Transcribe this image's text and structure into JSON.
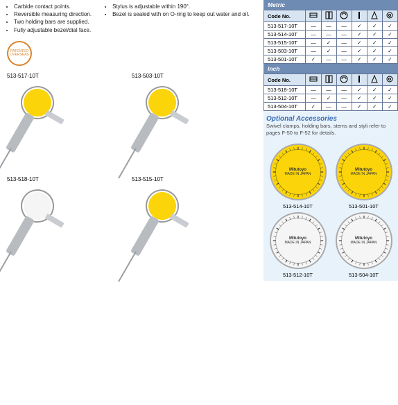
{
  "features_col1": [
    "Carbide contact points.",
    "Reversible measuring direction.",
    "Two holding bars are supplied.",
    "Fully adjustable bezel/dial face."
  ],
  "features_col2": [
    "Stylus is adjustable within 190°.",
    "Bezel is sealed with on O-ring to keep out water and oil."
  ],
  "badge": "PATENTED OVERSEAS",
  "products": [
    {
      "label": "513-517-10T",
      "dial": "yellow"
    },
    {
      "label": "513-503-10T",
      "dial": "yellow"
    },
    {
      "label": "513-518-10T",
      "dial": "white"
    },
    {
      "label": "513-515-10T",
      "dial": "yellow"
    }
  ],
  "metric_header": "Metric",
  "inch_header": "Inch",
  "code_header": "Code No.",
  "icon_names": [
    "orient-h",
    "orient-v",
    "orient-u",
    "rod",
    "cone",
    "ring"
  ],
  "metric_rows": [
    {
      "code": "513-517-10T",
      "v": [
        "—",
        "—",
        "—",
        "✓",
        "✓",
        "✓"
      ]
    },
    {
      "code": "513-514-10T",
      "v": [
        "—",
        "—",
        "—",
        "✓",
        "✓",
        "✓"
      ]
    },
    {
      "code": "513-515-10T",
      "v": [
        "—",
        "✓",
        "—",
        "✓",
        "✓",
        "✓"
      ]
    },
    {
      "code": "513-503-10T",
      "v": [
        "—",
        "✓",
        "—",
        "✓",
        "✓",
        "✓"
      ]
    },
    {
      "code": "513-501-10T",
      "v": [
        "✓",
        "—",
        "—",
        "✓",
        "✓",
        "✓"
      ]
    }
  ],
  "inch_rows": [
    {
      "code": "513-518-10T",
      "v": [
        "—",
        "—",
        "—",
        "✓",
        "✓",
        "✓"
      ]
    },
    {
      "code": "513-512-10T",
      "v": [
        "—",
        "✓",
        "—",
        "✓",
        "✓",
        "✓"
      ]
    },
    {
      "code": "513-504-10T",
      "v": [
        "✓",
        "—",
        "—",
        "✓",
        "✓",
        "✓"
      ]
    }
  ],
  "optional_head": "Optional Accessories",
  "optional_text": "Swivel clamps, holding bars, stems and styli refer to pages F-50 to F-52 for details.",
  "dial_faces": [
    {
      "label": "513-514-10T",
      "color": "yellow",
      "brand": "Mitutoyo"
    },
    {
      "label": "513-501-10T",
      "color": "yellow",
      "brand": "Mitutoyo"
    },
    {
      "label": "513-512-10T",
      "color": "white",
      "brand": "Mitutoyo"
    },
    {
      "label": "513-504-10T",
      "color": "white",
      "brand": "Mitutoyo"
    }
  ],
  "colors": {
    "panel_bg": "#e8f2fb",
    "section_head_bg": "#6e8bb3",
    "link_blue": "#3a6eb5",
    "dial_yellow": "#fbd40a",
    "badge": "#d9832c",
    "border": "#65779a"
  }
}
